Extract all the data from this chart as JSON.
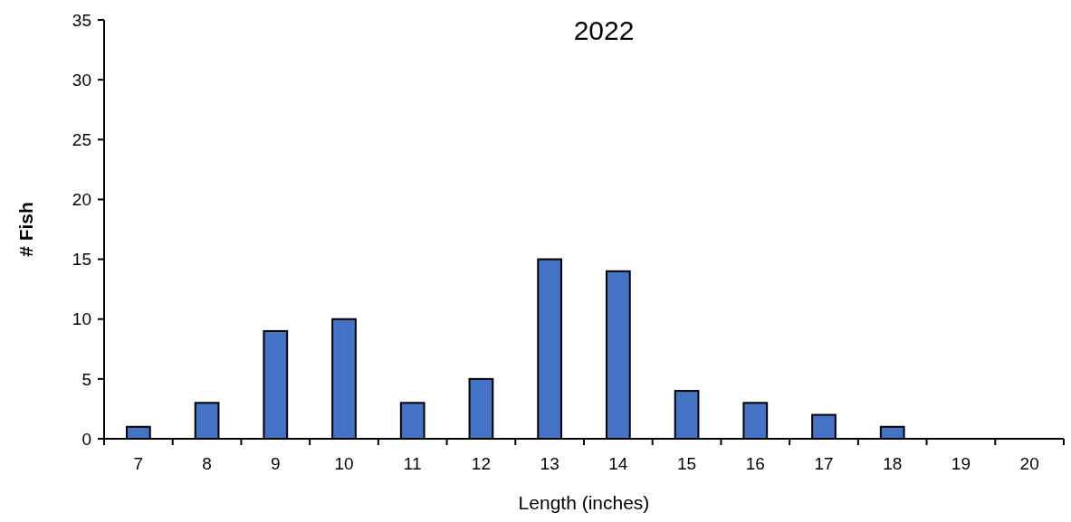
{
  "chart_data": {
    "type": "bar",
    "title": "2022",
    "xlabel": "Length (inches)",
    "ylabel": "# Fish",
    "categories": [
      "7",
      "8",
      "9",
      "10",
      "11",
      "12",
      "13",
      "14",
      "15",
      "16",
      "17",
      "18",
      "19",
      "20"
    ],
    "values": [
      1,
      3,
      9,
      10,
      3,
      5,
      15,
      14,
      4,
      3,
      2,
      1,
      0,
      0
    ],
    "color": "#4472c4",
    "ylim": [
      0,
      35
    ],
    "yticks": [
      0,
      5,
      10,
      15,
      20,
      25,
      30,
      35
    ],
    "grid": false
  }
}
